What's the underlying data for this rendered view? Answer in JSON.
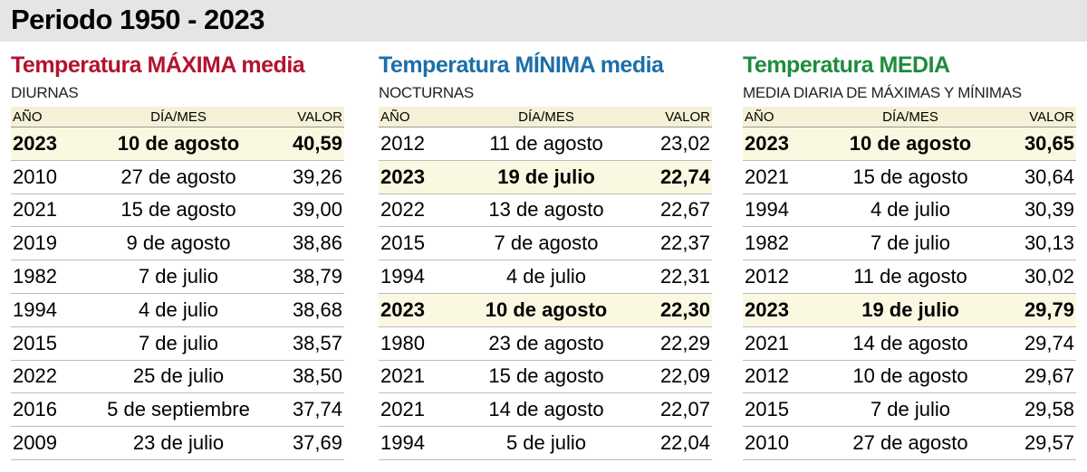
{
  "header": {
    "title": "Periodo 1950 - 2023"
  },
  "tables": [
    {
      "title": "Temperatura MÁXIMA media",
      "subtitle": "DIURNAS",
      "color": "#b3132e",
      "columns": [
        "AÑO",
        "DÍA/MES",
        "VALOR"
      ],
      "highlighted_rows": [
        0
      ],
      "rows": [
        [
          "2023",
          "10 de agosto",
          "40,59"
        ],
        [
          "2010",
          "27 de agosto",
          "39,26"
        ],
        [
          "2021",
          "15 de agosto",
          "39,00"
        ],
        [
          "2019",
          "9 de agosto",
          "38,86"
        ],
        [
          "1982",
          "7 de julio",
          "38,79"
        ],
        [
          "1994",
          "4 de julio",
          "38,68"
        ],
        [
          "2015",
          "7 de julio",
          "38,57"
        ],
        [
          "2022",
          "25 de julio",
          "38,50"
        ],
        [
          "2016",
          "5 de septiembre",
          "37,74"
        ],
        [
          "2009",
          "23 de julio",
          "37,69"
        ]
      ]
    },
    {
      "title": "Temperatura MÍNIMA media",
      "subtitle": "NOCTURNAS",
      "color": "#1b6fa9",
      "columns": [
        "AÑO",
        "DÍA/MES",
        "VALOR"
      ],
      "highlighted_rows": [
        1,
        5
      ],
      "rows": [
        [
          "2012",
          "11 de agosto",
          "23,02"
        ],
        [
          "2023",
          "19 de julio",
          "22,74"
        ],
        [
          "2022",
          "13 de agosto",
          "22,67"
        ],
        [
          "2015",
          "7 de agosto",
          "22,37"
        ],
        [
          "1994",
          "4 de julio",
          "22,31"
        ],
        [
          "2023",
          "10 de agosto",
          "22,30"
        ],
        [
          "1980",
          "23 de agosto",
          "22,29"
        ],
        [
          "2021",
          "15 de agosto",
          "22,09"
        ],
        [
          "2021",
          "14 de agosto",
          "22,07"
        ],
        [
          "1994",
          "5 de julio",
          "22,04"
        ]
      ]
    },
    {
      "title": "Temperatura MEDIA",
      "subtitle": "MEDIA DIARIA DE MÁXIMAS Y MÍNIMAS",
      "color": "#1f8b3d",
      "columns": [
        "AÑO",
        "DÍA/MES",
        "VALOR"
      ],
      "highlighted_rows": [
        0,
        5
      ],
      "rows": [
        [
          "2023",
          "10 de agosto",
          "30,65"
        ],
        [
          "2021",
          "15 de agosto",
          "30,64"
        ],
        [
          "1994",
          "4 de julio",
          "30,39"
        ],
        [
          "1982",
          "7 de julio",
          "30,13"
        ],
        [
          "2012",
          "11 de agosto",
          "30,02"
        ],
        [
          "2023",
          "19 de julio",
          "29,79"
        ],
        [
          "2021",
          "14 de agosto",
          "29,74"
        ],
        [
          "2012",
          "10 de agosto",
          "29,67"
        ],
        [
          "2015",
          "7 de julio",
          "29,58"
        ],
        [
          "2010",
          "27 de agosto",
          "29,57"
        ]
      ]
    }
  ]
}
